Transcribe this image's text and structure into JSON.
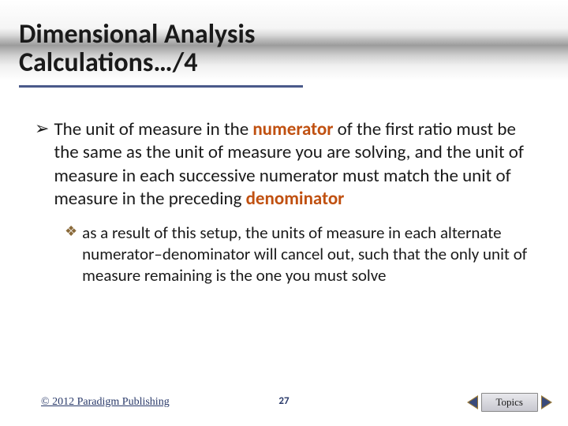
{
  "title": {
    "line1": "Dimensional Analysis",
    "line2": "Calculations…/4"
  },
  "main_bullet": {
    "pre1": "The unit of measure in the ",
    "kw1": "numerator",
    "mid": " of the first ratio must be the same as the unit of measure you are solving, and the unit of measure in each successive numerator must match the unit of measure in the preceding ",
    "kw2": "denominator"
  },
  "sub_bullet": {
    "text": "as a result of this setup, the units of measure in each alternate numerator–denominator will cancel out, such that the only unit of measure remaining is the one you must solve"
  },
  "footer": {
    "copyright": "© 2012 Paradigm Publishing",
    "page": "27",
    "topics_label": "Topics"
  },
  "colors": {
    "keyword": "#c05010",
    "footer_text": "#2a3a6a",
    "underline": "#4a5a8a",
    "diamond": "#8a6a3a",
    "arrow_fill": "#3a4a7a",
    "arrow_border": "#9a7a3a"
  }
}
